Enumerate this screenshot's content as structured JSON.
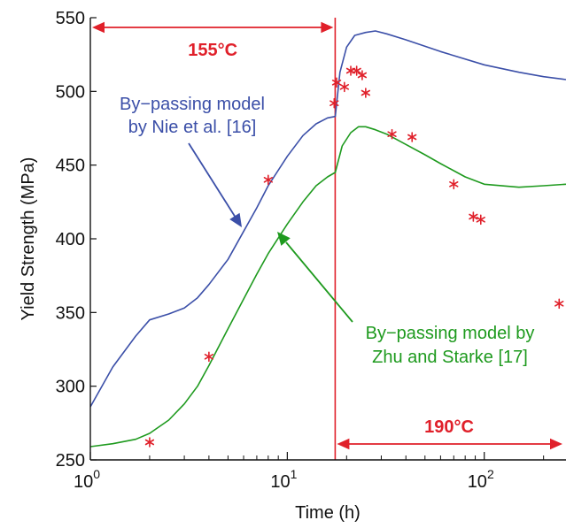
{
  "chart_data": {
    "type": "line",
    "xlabel": "Time (h)",
    "ylabel": "Yield Strength (MPa)",
    "xscale": "log",
    "xlim": [
      1,
      260
    ],
    "ylim": [
      250,
      550
    ],
    "x_ticks": [
      {
        "value": 1,
        "base": "10",
        "exp": "0"
      },
      {
        "value": 10,
        "base": "10",
        "exp": "1"
      },
      {
        "value": 100,
        "base": "10",
        "exp": "2"
      }
    ],
    "y_ticks": [
      250,
      300,
      350,
      400,
      450,
      500,
      550
    ],
    "grid": false,
    "colors": {
      "blue": "#3b4fa8",
      "green": "#1e9a1e",
      "red": "#e0202a"
    },
    "series": [
      {
        "label_lines": [
          "By−passing model",
          "by Nie et al. [16]"
        ],
        "color": "#3b4fa8",
        "x": [
          1,
          1.3,
          1.7,
          2.0,
          2.5,
          3.0,
          3.5,
          4.0,
          5.0,
          6.0,
          7.0,
          8.0,
          10.0,
          12.0,
          14.0,
          16.0,
          17.5,
          17.51,
          18.5,
          20,
          22,
          25,
          28,
          32,
          40,
          60,
          100,
          150,
          200,
          260
        ],
        "y": [
          286,
          313,
          334,
          345,
          349,
          353,
          360,
          369,
          386,
          405,
          421,
          436,
          456,
          470,
          478,
          482,
          483,
          483,
          513,
          530,
          538,
          540,
          541,
          539,
          535,
          527,
          518,
          513,
          510,
          508
        ]
      },
      {
        "label_lines": [
          "By−passing model by",
          "Zhu and Starke [17]"
        ],
        "color": "#1e9a1e",
        "x": [
          1,
          1.3,
          1.7,
          2.0,
          2.5,
          3.0,
          3.5,
          4.0,
          5.0,
          6.0,
          7.0,
          8.0,
          10.0,
          12.0,
          14.0,
          16.0,
          17.5,
          17.51,
          19,
          21,
          23,
          25,
          28,
          32,
          40,
          50,
          60,
          80,
          100,
          150,
          200,
          260
        ],
        "y": [
          259,
          261,
          264,
          268,
          277,
          288,
          300,
          314,
          339,
          359,
          376,
          390,
          410,
          425,
          436,
          442,
          445,
          445,
          463,
          472,
          476,
          476,
          474,
          471,
          464,
          457,
          451,
          442,
          437,
          435,
          436,
          437
        ]
      }
    ],
    "markers": {
      "name": "",
      "x": [
        2,
        4,
        8,
        17.3,
        17.8,
        19.5,
        21,
        22.5,
        24,
        25,
        34,
        43,
        70,
        88,
        96,
        240
      ],
      "y": [
        262,
        320,
        440,
        492,
        506,
        503,
        514,
        514,
        511,
        499,
        471,
        469,
        437,
        415,
        413,
        356
      ]
    },
    "transition_x": 17.5,
    "temperature_ranges": [
      {
        "label": "155°C",
        "from": 1,
        "to": 17.5
      },
      {
        "label": "190°C",
        "from": 17.5,
        "to": 260
      }
    ]
  }
}
